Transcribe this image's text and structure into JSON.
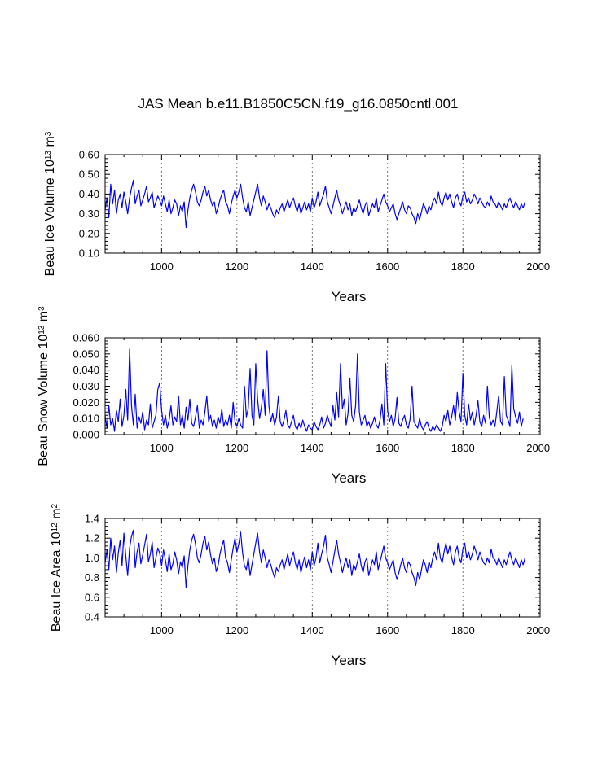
{
  "figure": {
    "title": "JAS Mean b.e11.B1850C5CN.f19_g16.0850cntl.001"
  },
  "chart_data": [
    {
      "type": "line",
      "title": "JAS Mean b.e11.B1850C5CN.f19_g16.0850cntl.001",
      "xlabel": "Years",
      "ylabel": {
        "pre": "Beau Ice Volume 10",
        "exp1": "13",
        "mid": " m",
        "exp2": "3"
      },
      "xlim": [
        850,
        2005
      ],
      "ylim": [
        0.1,
        0.6
      ],
      "xticks": [
        1000,
        1200,
        1400,
        1600,
        1800,
        2000
      ],
      "xtick_labels": [
        "1000",
        "1200",
        "1400",
        "1600",
        "1800",
        "2000"
      ],
      "yticks": [
        0.1,
        0.2,
        0.3,
        0.4,
        0.5,
        0.6
      ],
      "ytick_labels": [
        "0.10",
        "0.20",
        "0.30",
        "0.40",
        "0.50",
        "0.60"
      ],
      "vgrid_dashed": [
        1000,
        1200,
        1400,
        1600,
        1800,
        2000
      ],
      "series": [
        {
          "name": "Beau Ice Volume",
          "color": "#0000ff",
          "x_start": 850,
          "x_step": 5,
          "values": [
            0.32,
            0.38,
            0.28,
            0.45,
            0.35,
            0.42,
            0.3,
            0.37,
            0.4,
            0.33,
            0.41,
            0.36,
            0.3,
            0.38,
            0.43,
            0.47,
            0.35,
            0.39,
            0.42,
            0.34,
            0.37,
            0.4,
            0.44,
            0.36,
            0.38,
            0.41,
            0.33,
            0.36,
            0.39,
            0.37,
            0.34,
            0.39,
            0.35,
            0.31,
            0.37,
            0.3,
            0.33,
            0.37,
            0.35,
            0.29,
            0.34,
            0.31,
            0.36,
            0.23,
            0.32,
            0.38,
            0.42,
            0.45,
            0.41,
            0.36,
            0.34,
            0.37,
            0.41,
            0.44,
            0.39,
            0.42,
            0.37,
            0.34,
            0.36,
            0.3,
            0.33,
            0.37,
            0.4,
            0.42,
            0.36,
            0.34,
            0.3,
            0.35,
            0.39,
            0.42,
            0.38,
            0.41,
            0.45,
            0.38,
            0.33,
            0.31,
            0.36,
            0.29,
            0.33,
            0.37,
            0.41,
            0.45,
            0.38,
            0.34,
            0.39,
            0.36,
            0.32,
            0.35,
            0.33,
            0.3,
            0.28,
            0.32,
            0.3,
            0.33,
            0.35,
            0.31,
            0.34,
            0.37,
            0.33,
            0.36,
            0.38,
            0.34,
            0.31,
            0.35,
            0.3,
            0.33,
            0.36,
            0.32,
            0.35,
            0.31,
            0.38,
            0.33,
            0.36,
            0.41,
            0.34,
            0.37,
            0.4,
            0.44,
            0.36,
            0.33,
            0.3,
            0.34,
            0.38,
            0.42,
            0.37,
            0.34,
            0.3,
            0.33,
            0.36,
            0.32,
            0.35,
            0.29,
            0.33,
            0.31,
            0.34,
            0.37,
            0.33,
            0.3,
            0.34,
            0.36,
            0.29,
            0.32,
            0.35,
            0.33,
            0.38,
            0.31,
            0.34,
            0.37,
            0.4,
            0.36,
            0.34,
            0.31,
            0.33,
            0.35,
            0.3,
            0.27,
            0.3,
            0.33,
            0.36,
            0.32,
            0.3,
            0.34,
            0.33,
            0.3,
            0.28,
            0.25,
            0.3,
            0.27,
            0.31,
            0.35,
            0.33,
            0.3,
            0.34,
            0.32,
            0.36,
            0.38,
            0.35,
            0.41,
            0.36,
            0.34,
            0.38,
            0.41,
            0.37,
            0.4,
            0.36,
            0.33,
            0.38,
            0.4,
            0.36,
            0.34,
            0.39,
            0.41,
            0.36,
            0.38,
            0.35,
            0.37,
            0.4,
            0.38,
            0.35,
            0.38,
            0.36,
            0.34,
            0.33,
            0.36,
            0.34,
            0.39,
            0.36,
            0.35,
            0.33,
            0.36,
            0.34,
            0.32,
            0.35,
            0.33,
            0.36,
            0.38,
            0.35,
            0.33,
            0.36,
            0.34,
            0.32,
            0.35,
            0.33,
            0.36
          ]
        }
      ]
    },
    {
      "type": "line",
      "xlabel": "Years",
      "ylabel": {
        "pre": "Beau Snow Volume 10",
        "exp1": "13",
        "mid": " m",
        "exp2": "3"
      },
      "xlim": [
        850,
        2005
      ],
      "ylim": [
        0.0,
        0.06
      ],
      "xticks": [
        1000,
        1200,
        1400,
        1600,
        1800,
        2000
      ],
      "xtick_labels": [
        "1000",
        "1200",
        "1400",
        "1600",
        "1800",
        "2000"
      ],
      "yticks": [
        0.0,
        0.01,
        0.02,
        0.03,
        0.04,
        0.05,
        0.06
      ],
      "ytick_labels": [
        "0.000",
        "0.010",
        "0.020",
        "0.030",
        "0.040",
        "0.050",
        "0.060"
      ],
      "vgrid_dashed": [
        1000,
        1200,
        1400,
        1600,
        1800,
        2000
      ],
      "series": [
        {
          "name": "Beau Snow Volume",
          "color": "#0000ff",
          "x_start": 850,
          "x_step": 5,
          "values": [
            0.012,
            0.004,
            0.018,
            0.006,
            0.01,
            0.002,
            0.015,
            0.008,
            0.022,
            0.005,
            0.012,
            0.028,
            0.009,
            0.053,
            0.018,
            0.006,
            0.025,
            0.004,
            0.011,
            0.007,
            0.014,
            0.003,
            0.009,
            0.006,
            0.019,
            0.004,
            0.008,
            0.012,
            0.028,
            0.032,
            0.015,
            0.006,
            0.012,
            0.004,
            0.009,
            0.018,
            0.006,
            0.011,
            0.008,
            0.024,
            0.006,
            0.012,
            0.004,
            0.017,
            0.009,
            0.022,
            0.007,
            0.005,
            0.011,
            0.018,
            0.004,
            0.009,
            0.006,
            0.014,
            0.024,
            0.008,
            0.012,
            0.005,
            0.009,
            0.004,
            0.011,
            0.007,
            0.016,
            0.005,
            0.009,
            0.006,
            0.012,
            0.004,
            0.02,
            0.008,
            0.005,
            0.01,
            0.006,
            0.004,
            0.03,
            0.011,
            0.016,
            0.041,
            0.012,
            0.006,
            0.044,
            0.022,
            0.01,
            0.017,
            0.028,
            0.012,
            0.052,
            0.018,
            0.008,
            0.013,
            0.006,
            0.011,
            0.024,
            0.008,
            0.005,
            0.009,
            0.015,
            0.006,
            0.004,
            0.008,
            0.012,
            0.005,
            0.003,
            0.007,
            0.004,
            0.009,
            0.005,
            0.002,
            0.006,
            0.004,
            0.003,
            0.008,
            0.005,
            0.003,
            0.006,
            0.011,
            0.004,
            0.007,
            0.012,
            0.008,
            0.005,
            0.018,
            0.009,
            0.026,
            0.011,
            0.044,
            0.016,
            0.022,
            0.006,
            0.013,
            0.035,
            0.012,
            0.008,
            0.018,
            0.05,
            0.014,
            0.006,
            0.009,
            0.012,
            0.005,
            0.008,
            0.004,
            0.007,
            0.011,
            0.006,
            0.004,
            0.009,
            0.019,
            0.006,
            0.044,
            0.015,
            0.008,
            0.012,
            0.005,
            0.01,
            0.023,
            0.007,
            0.005,
            0.009,
            0.012,
            0.006,
            0.004,
            0.01,
            0.03,
            0.008,
            0.006,
            0.004,
            0.01,
            0.005,
            0.003,
            0.006,
            0.008,
            0.004,
            0.002,
            0.005,
            0.003,
            0.006,
            0.004,
            0.002,
            0.005,
            0.012,
            0.008,
            0.015,
            0.006,
            0.011,
            0.018,
            0.009,
            0.026,
            0.014,
            0.008,
            0.038,
            0.012,
            0.006,
            0.019,
            0.009,
            0.014,
            0.006,
            0.012,
            0.021,
            0.008,
            0.005,
            0.012,
            0.007,
            0.03,
            0.011,
            0.006,
            0.009,
            0.005,
            0.014,
            0.024,
            0.008,
            0.006,
            0.036,
            0.012,
            0.009,
            0.005,
            0.043,
            0.016,
            0.011,
            0.007,
            0.014,
            0.005,
            0.01
          ]
        }
      ]
    },
    {
      "type": "line",
      "xlabel": "Years",
      "ylabel": {
        "pre": "Beau Ice Area 10",
        "exp1": "12",
        "mid": " m",
        "exp2": "2"
      },
      "xlim": [
        850,
        2005
      ],
      "ylim": [
        0.4,
        1.4
      ],
      "xticks": [
        1000,
        1200,
        1400,
        1600,
        1800,
        2000
      ],
      "xtick_labels": [
        "1000",
        "1200",
        "1400",
        "1600",
        "1800",
        "2000"
      ],
      "yticks": [
        0.4,
        0.6,
        0.8,
        1.0,
        1.2,
        1.4
      ],
      "ytick_labels": [
        "0.4",
        "0.6",
        "0.8",
        "1.0",
        "1.2",
        "1.4"
      ],
      "vgrid_dashed": [
        1000,
        1200,
        1400,
        1600,
        1800,
        2000
      ],
      "series": [
        {
          "name": "Beau Ice Area",
          "color": "#0000ff",
          "x_start": 850,
          "x_step": 5,
          "values": [
            0.95,
            1.08,
            0.88,
            1.2,
            0.98,
            1.12,
            0.85,
            1.05,
            1.18,
            0.92,
            1.25,
            1.02,
            0.82,
            1.1,
            1.22,
            1.28,
            0.9,
            1.06,
            1.15,
            0.94,
            1.03,
            1.13,
            1.24,
            0.96,
            1.04,
            1.16,
            0.9,
            1.0,
            1.1,
            1.05,
            0.92,
            1.08,
            0.98,
            0.86,
            1.04,
            0.88,
            0.94,
            1.06,
            0.98,
            0.84,
            0.96,
            0.9,
            1.02,
            0.7,
            0.92,
            1.08,
            1.18,
            1.24,
            1.14,
            1.0,
            0.95,
            1.04,
            1.15,
            1.22,
            1.08,
            1.16,
            1.03,
            0.94,
            1.0,
            0.86,
            0.92,
            1.04,
            1.12,
            1.18,
            1.0,
            0.95,
            0.85,
            0.98,
            1.1,
            1.2,
            1.06,
            1.14,
            1.26,
            1.05,
            0.92,
            0.88,
            1.0,
            0.82,
            0.93,
            1.04,
            1.15,
            1.25,
            1.06,
            0.95,
            1.08,
            1.0,
            0.9,
            0.98,
            0.93,
            0.86,
            0.8,
            0.9,
            0.86,
            0.93,
            0.98,
            0.88,
            0.96,
            1.04,
            0.92,
            1.0,
            1.06,
            0.95,
            0.88,
            0.98,
            0.85,
            0.94,
            1.01,
            0.9,
            0.98,
            0.88,
            1.06,
            0.92,
            1.0,
            1.15,
            0.95,
            1.04,
            1.12,
            1.23,
            1.0,
            0.93,
            0.85,
            0.96,
            1.07,
            1.18,
            1.04,
            0.95,
            0.85,
            0.93,
            1.0,
            0.9,
            0.98,
            0.82,
            0.93,
            0.88,
            0.96,
            1.04,
            0.92,
            0.85,
            0.96,
            1.0,
            0.82,
            0.9,
            0.98,
            0.93,
            1.06,
            0.88,
            0.96,
            1.04,
            1.12,
            1.0,
            0.95,
            0.88,
            0.93,
            0.98,
            0.85,
            0.78,
            0.85,
            0.93,
            1.0,
            0.9,
            0.85,
            0.96,
            0.93,
            0.85,
            0.8,
            0.72,
            0.85,
            0.78,
            0.88,
            0.98,
            0.93,
            0.85,
            0.96,
            0.9,
            1.0,
            1.06,
            0.98,
            1.15,
            1.0,
            0.95,
            1.06,
            1.15,
            1.04,
            1.12,
            1.0,
            0.93,
            1.06,
            1.12,
            1.0,
            0.95,
            1.09,
            1.15,
            1.0,
            1.06,
            0.98,
            1.04,
            1.12,
            1.06,
            0.98,
            1.06,
            1.0,
            0.95,
            0.93,
            1.0,
            0.95,
            1.09,
            1.0,
            0.98,
            0.93,
            1.0,
            0.95,
            0.9,
            0.98,
            0.93,
            1.0,
            1.06,
            0.98,
            0.93,
            1.0,
            0.95,
            0.9,
            0.98,
            0.93,
            1.0
          ]
        }
      ]
    }
  ]
}
